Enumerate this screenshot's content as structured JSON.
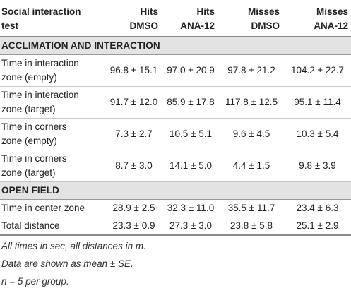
{
  "header": {
    "col0": [
      "Social interaction",
      "test"
    ],
    "col1": [
      "Hits",
      "DMSO"
    ],
    "col2": [
      "Hits",
      "ANA-12"
    ],
    "col3": [
      "Misses",
      "DMSO"
    ],
    "col4": [
      "Misses",
      "ANA-12"
    ]
  },
  "sections": [
    {
      "title": "ACCLIMATION AND INTERACTION",
      "rows": [
        {
          "label": [
            "Time in interaction",
            "zone (empty)"
          ],
          "values": [
            "96.8 ± 15.1",
            "97.0 ± 20.9",
            "97.8 ± 21.2",
            "104.2 ± 22.7"
          ]
        },
        {
          "label": [
            "Time in interaction",
            "zone (target)"
          ],
          "values": [
            "91.7 ± 12.0",
            "85.9 ± 17.8",
            "117.8 ± 12.5",
            "95.1 ± 11.4"
          ]
        },
        {
          "label": [
            "Time in corners",
            "zone (empty)"
          ],
          "values": [
            "7.3 ± 2.7",
            "10.5 ± 5.1",
            "9.6 ± 4.5",
            "10.3 ± 5.4"
          ]
        },
        {
          "label": [
            "Time in corners",
            "zone (target)"
          ],
          "values": [
            "8.7 ± 3.0",
            "14.1 ± 5.0",
            "4.4 ± 1.5",
            "9.8 ± 3.9"
          ]
        }
      ]
    },
    {
      "title": "OPEN FIELD",
      "rows": [
        {
          "label": [
            "Time in center zone"
          ],
          "values": [
            "28.9 ± 2.5",
            "32.3 ± 11.0",
            "35.5 ± 11.7",
            "23.4 ± 6.3"
          ]
        },
        {
          "label": [
            "Total distance"
          ],
          "values": [
            "23.3 ± 0.9",
            "27.3 ± 3.0",
            "23.8 ± 5.8",
            "25.1 ± 2.9"
          ]
        }
      ]
    }
  ],
  "notes": [
    "All times in sec, all distances in m.",
    "Data are shown as mean ± SE.",
    "n = 5 per group."
  ]
}
